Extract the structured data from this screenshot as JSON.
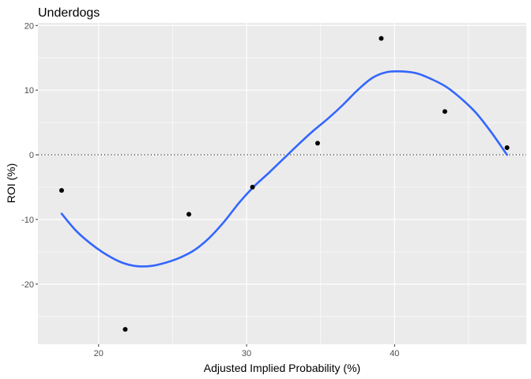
{
  "chart_data": {
    "type": "scatter",
    "title": "Underdogs",
    "xlabel": "Adjusted Implied Probability (%)",
    "ylabel": "ROI (%)",
    "xlim": [
      15.9,
      48.9
    ],
    "ylim": [
      -29.3,
      20.4
    ],
    "x_ticks": [
      20,
      30,
      40
    ],
    "y_ticks": [
      -20,
      -10,
      0,
      10,
      20
    ],
    "grid": true,
    "reference_line": {
      "y": 0,
      "style": "dotted"
    },
    "points": [
      {
        "x": 17.5,
        "y": -5.5
      },
      {
        "x": 21.8,
        "y": -27.0
      },
      {
        "x": 26.1,
        "y": -9.2
      },
      {
        "x": 30.4,
        "y": -5.0
      },
      {
        "x": 34.8,
        "y": 1.8
      },
      {
        "x": 39.1,
        "y": 18.0
      },
      {
        "x": 43.4,
        "y": 6.7
      },
      {
        "x": 47.6,
        "y": 1.1
      }
    ],
    "smooth_line": [
      {
        "x": 17.5,
        "y": -9.1
      },
      {
        "x": 18.5,
        "y": -11.8
      },
      {
        "x": 19.5,
        "y": -13.8
      },
      {
        "x": 20.5,
        "y": -15.4
      },
      {
        "x": 21.5,
        "y": -16.6
      },
      {
        "x": 22.5,
        "y": -17.2
      },
      {
        "x": 23.5,
        "y": -17.2
      },
      {
        "x": 24.5,
        "y": -16.7
      },
      {
        "x": 25.5,
        "y": -15.9
      },
      {
        "x": 26.5,
        "y": -14.7
      },
      {
        "x": 27.5,
        "y": -12.8
      },
      {
        "x": 28.5,
        "y": -10.3
      },
      {
        "x": 29.5,
        "y": -7.4
      },
      {
        "x": 30.5,
        "y": -4.9
      },
      {
        "x": 31.5,
        "y": -2.8
      },
      {
        "x": 32.5,
        "y": -0.6
      },
      {
        "x": 33.5,
        "y": 1.6
      },
      {
        "x": 34.5,
        "y": 3.7
      },
      {
        "x": 35.5,
        "y": 5.6
      },
      {
        "x": 36.5,
        "y": 7.7
      },
      {
        "x": 37.5,
        "y": 10.0
      },
      {
        "x": 38.5,
        "y": 11.9
      },
      {
        "x": 39.5,
        "y": 12.8
      },
      {
        "x": 40.5,
        "y": 12.9
      },
      {
        "x": 41.5,
        "y": 12.6
      },
      {
        "x": 42.5,
        "y": 11.7
      },
      {
        "x": 43.5,
        "y": 10.5
      },
      {
        "x": 44.5,
        "y": 8.7
      },
      {
        "x": 45.5,
        "y": 6.5
      },
      {
        "x": 46.5,
        "y": 3.6
      },
      {
        "x": 47.6,
        "y": 0.0
      }
    ],
    "colors": {
      "panel": "#ebebeb",
      "grid_major": "#ffffff",
      "point": "#000000",
      "smooth": "#3366ff"
    }
  }
}
